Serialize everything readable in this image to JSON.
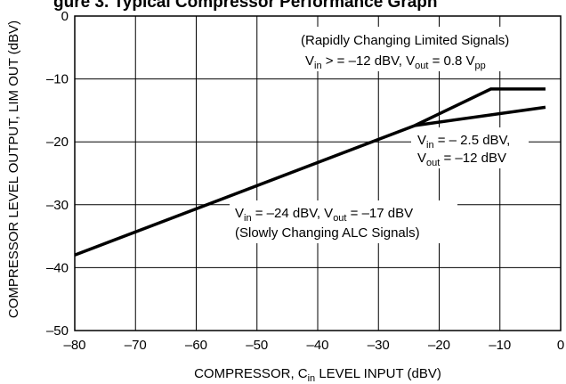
{
  "chart_data": {
    "type": "line",
    "title": "gure 3. Typical Compressor Performance Graph",
    "xlabel": "COMPRESSOR, C",
    "xlabel_sub": "in",
    "xlabel_tail": " LEVEL INPUT (dBV)",
    "ylabel": "COMPRESSOR LEVEL OUTPUT, LIM OUT (dBV)",
    "xlim": [
      -80,
      0
    ],
    "ylim": [
      -50,
      0
    ],
    "x_ticks": [
      -80,
      -70,
      -60,
      -50,
      -40,
      -30,
      -20,
      -10,
      0
    ],
    "y_ticks": [
      -50,
      -40,
      -30,
      -20,
      -10,
      0
    ],
    "x_tick_labels": [
      "–80",
      "–70",
      "–60",
      "–50",
      "–40",
      "–30",
      "–20",
      "–10",
      "0"
    ],
    "y_tick_labels": [
      "–50",
      "–40",
      "–30",
      "–20",
      "–10",
      "0"
    ],
    "grid": true,
    "series": [
      {
        "x": [
          -80,
          -24,
          -11.5,
          -2.5
        ],
        "y": [
          -38,
          -17.4,
          -11.6,
          -11.6
        ]
      },
      {
        "x": [
          -24,
          -2.5
        ],
        "y": [
          -17.4,
          -14.5
        ]
      }
    ],
    "annotations": {
      "rapid_title": "(Rapidly Changing Limited Signals)",
      "rapid_vin": "V",
      "rapid_vin_sub": "in",
      "rapid_vin_rest": " > = –12 dBV, V",
      "rapid_vout_sub": "out",
      "rapid_vout_rest": " = 0.8 V",
      "rapid_pp_sub": "pp",
      "mid_vin": "V",
      "mid_vin_sub": "in",
      "mid_vin_rest": " = – 2.5 dBV,",
      "mid_vout": "V",
      "mid_vout_sub": "out",
      "mid_vout_rest": " = –12 dBV",
      "slow_vin": "V",
      "slow_vin_sub": "in",
      "slow_vin_rest": " = –24 dBV, V",
      "slow_vout_sub": "out",
      "slow_vout_rest": " = –17 dBV",
      "slow_title": "(Slowly Changing ALC Signals)"
    }
  }
}
